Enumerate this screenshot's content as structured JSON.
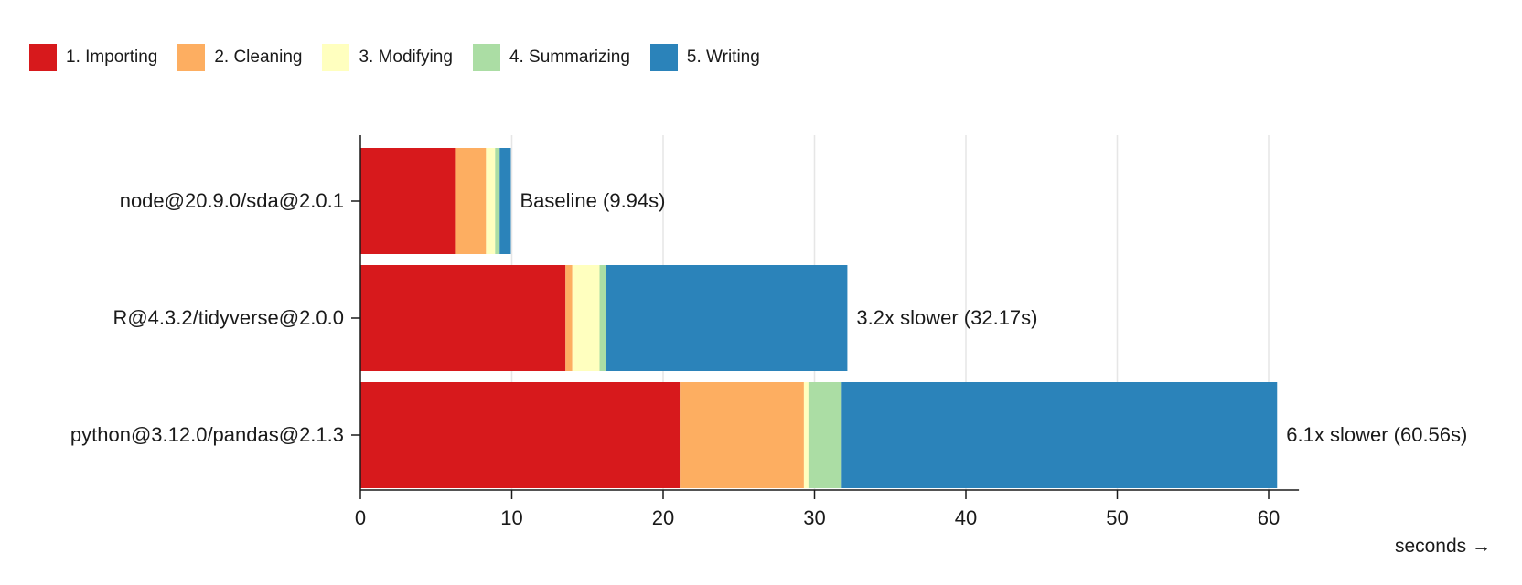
{
  "chart_data": {
    "type": "bar",
    "orientation": "horizontal",
    "stacked": true,
    "title": "",
    "xlabel": "seconds →",
    "ylabel": "",
    "xlim": [
      0,
      62
    ],
    "xticks": [
      0,
      10,
      20,
      30,
      40,
      50,
      60
    ],
    "categories": [
      "node@20.9.0/sda@2.0.1",
      "R@4.3.2/tidyverse@2.0.0",
      "python@3.12.0/pandas@2.1.3"
    ],
    "series": [
      {
        "name": "1. Importing",
        "color": "#d7191c",
        "values": [
          6.25,
          13.55,
          21.1
        ]
      },
      {
        "name": "2. Cleaning",
        "color": "#fdae61",
        "values": [
          2.05,
          0.45,
          8.2
        ]
      },
      {
        "name": "3. Modifying",
        "color": "#ffffbf",
        "values": [
          0.6,
          1.8,
          0.3
        ]
      },
      {
        "name": "4. Summarizing",
        "color": "#abdda4",
        "values": [
          0.3,
          0.4,
          2.2
        ]
      },
      {
        "name": "5. Writing",
        "color": "#2b83ba",
        "values": [
          0.74,
          15.97,
          28.76
        ]
      }
    ],
    "bar_labels": [
      "Baseline (9.94s)",
      "3.2x slower (32.17s)",
      "6.1x slower (60.56s)"
    ],
    "legend_position": "top-left",
    "grid": true
  }
}
